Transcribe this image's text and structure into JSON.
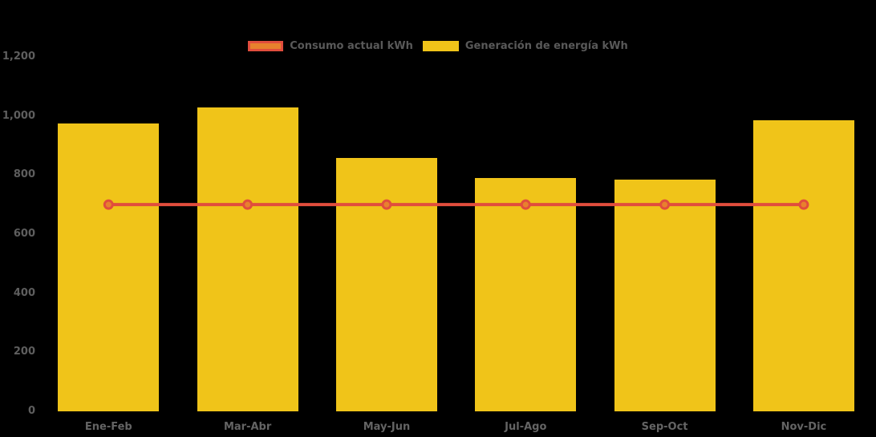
{
  "chart_data": {
    "type": "bar",
    "subtype": "bar-line-combo",
    "title": "",
    "categories": [
      "Ene-Feb",
      "Mar-Abr",
      "May-Jun",
      "Jul-Ago",
      "Sep-Oct",
      "Nov-Dic"
    ],
    "series": [
      {
        "name": "Consumo actual kWh",
        "type": "line",
        "values": [
          700,
          700,
          700,
          700,
          700,
          700
        ],
        "line_color": "#e14d3d",
        "marker_fill": "#e8812d"
      },
      {
        "name": "Generación de energía kWh",
        "type": "bar",
        "values": [
          975,
          1030,
          858,
          790,
          785,
          985
        ],
        "bar_color": "#f0c419"
      }
    ],
    "xlabel": "",
    "ylabel": "",
    "ylim": [
      0,
      1200
    ],
    "yticks": [
      0,
      200,
      400,
      600,
      800,
      1000,
      1200
    ],
    "ytick_labels": [
      "0",
      "200",
      "400",
      "600",
      "800",
      "1,000",
      "1,200"
    ],
    "grid": false,
    "legend_position": "top-center",
    "background_color": "#000000",
    "axis_text_color": "#5e5e5e",
    "legend_text_color": "#595959"
  }
}
